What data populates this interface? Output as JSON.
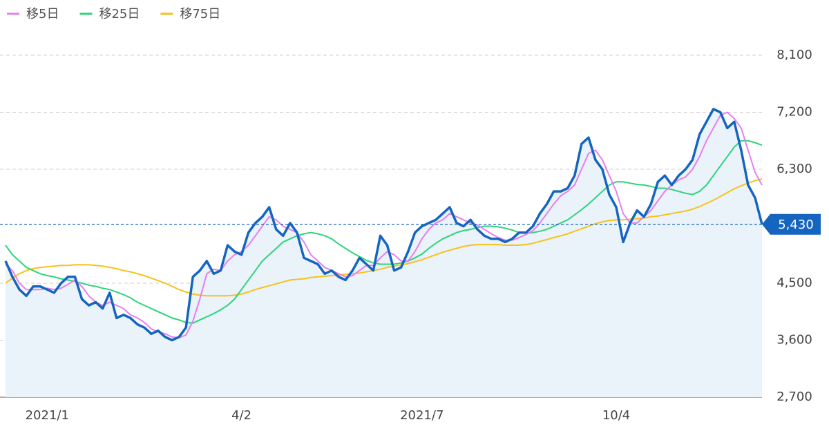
{
  "chart_data": {
    "type": "line",
    "categories": [
      null,
      null,
      null,
      null,
      null,
      null,
      "2021/1",
      null,
      null,
      null,
      null,
      null,
      null,
      null,
      null,
      null,
      null,
      null,
      null,
      null,
      null,
      null,
      null,
      null,
      null,
      null,
      null,
      null,
      null,
      null,
      null,
      null,
      null,
      null,
      "4/2",
      null,
      null,
      null,
      null,
      null,
      null,
      null,
      null,
      null,
      null,
      null,
      null,
      null,
      null,
      null,
      null,
      null,
      null,
      null,
      null,
      null,
      null,
      null,
      null,
      null,
      "2021/7",
      null,
      null,
      null,
      null,
      null,
      null,
      null,
      null,
      null,
      null,
      null,
      null,
      null,
      null,
      null,
      null,
      null,
      null,
      null,
      null,
      null,
      null,
      null,
      null,
      null,
      null,
      null,
      "10/4",
      null,
      null,
      null,
      null,
      null,
      null,
      null,
      null,
      null,
      null,
      null,
      null,
      null,
      null,
      null,
      null,
      null,
      null,
      null,
      null,
      null
    ],
    "values": [
      4850,
      4600,
      4400,
      4300,
      4450,
      4450,
      4400,
      4350,
      4500,
      4600,
      4600,
      4250,
      4150,
      4200,
      4100,
      4350,
      3950,
      4000,
      3950,
      3850,
      3800,
      3700,
      3750,
      3650,
      3600,
      3650,
      3800,
      4600,
      4700,
      4850,
      4650,
      4700,
      5100,
      5000,
      4950,
      5300,
      5450,
      5550,
      5700,
      5350,
      5250,
      5450,
      5300,
      4900,
      4850,
      4800,
      4650,
      4700,
      4600,
      4550,
      4700,
      4900,
      4800,
      4700,
      5250,
      5100,
      4700,
      4750,
      5000,
      5300,
      5400,
      5450,
      5500,
      5600,
      5700,
      5450,
      5400,
      5500,
      5350,
      5250,
      5200,
      5200,
      5150,
      5200,
      5300,
      5300,
      5400,
      5600,
      5750,
      5950,
      5950,
      6000,
      6200,
      6700,
      6800,
      6450,
      6300,
      5900,
      5700,
      5150,
      5450,
      5650,
      5550,
      5750,
      6100,
      6200,
      6050,
      6200,
      6300,
      6450,
      6850,
      7050,
      7250,
      7200,
      6950,
      7050,
      6600,
      6050,
      5850,
      5430
    ],
    "color": "#1565c0",
    "series": [
      {
        "name": "移5日",
        "color": "#e67ef0",
        "values": [
          4800,
          4700,
          4500,
          4400,
          4400,
          4400,
          4420,
          4400,
          4420,
          4480,
          4550,
          4450,
          4300,
          4200,
          4150,
          4200,
          4150,
          4100,
          4000,
          3950,
          3880,
          3780,
          3730,
          3700,
          3650,
          3640,
          3680,
          3900,
          4250,
          4650,
          4720,
          4700,
          4850,
          4950,
          5000,
          5100,
          5250,
          5400,
          5550,
          5500,
          5400,
          5350,
          5300,
          5150,
          4950,
          4850,
          4750,
          4700,
          4650,
          4600,
          4620,
          4700,
          4780,
          4780,
          4900,
          5000,
          4950,
          4850,
          4850,
          5000,
          5200,
          5350,
          5450,
          5500,
          5600,
          5550,
          5500,
          5450,
          5420,
          5350,
          5280,
          5220,
          5180,
          5180,
          5220,
          5270,
          5330,
          5450,
          5600,
          5750,
          5880,
          5950,
          6050,
          6300,
          6550,
          6600,
          6450,
          6200,
          5950,
          5600,
          5450,
          5450,
          5550,
          5650,
          5800,
          5950,
          6050,
          6130,
          6180,
          6300,
          6500,
          6750,
          6950,
          7150,
          7200,
          7100,
          6950,
          6600,
          6250,
          6050
        ]
      },
      {
        "name": "移25日",
        "color": "#2dd47a",
        "values": [
          5100,
          4950,
          4850,
          4750,
          4700,
          4650,
          4620,
          4600,
          4570,
          4550,
          4530,
          4500,
          4470,
          4450,
          4420,
          4400,
          4360,
          4320,
          4270,
          4200,
          4150,
          4100,
          4050,
          4000,
          3950,
          3920,
          3880,
          3870,
          3920,
          3970,
          4020,
          4080,
          4150,
          4250,
          4400,
          4550,
          4700,
          4850,
          4950,
          5050,
          5150,
          5200,
          5250,
          5280,
          5300,
          5280,
          5250,
          5200,
          5120,
          5050,
          4980,
          4920,
          4860,
          4820,
          4800,
          4800,
          4800,
          4820,
          4850,
          4900,
          4960,
          5050,
          5130,
          5200,
          5250,
          5300,
          5330,
          5350,
          5380,
          5400,
          5400,
          5390,
          5370,
          5340,
          5300,
          5290,
          5300,
          5320,
          5350,
          5400,
          5450,
          5500,
          5580,
          5660,
          5750,
          5850,
          5950,
          6050,
          6100,
          6100,
          6080,
          6060,
          6050,
          6030,
          6000,
          6000,
          5980,
          5950,
          5920,
          5900,
          5950,
          6050,
          6200,
          6350,
          6500,
          6650,
          6750,
          6750,
          6720,
          6680
        ]
      },
      {
        "name": "移75日",
        "color": "#f7c21a",
        "values": [
          4500,
          4580,
          4650,
          4700,
          4730,
          4750,
          4760,
          4770,
          4780,
          4780,
          4790,
          4790,
          4790,
          4780,
          4770,
          4750,
          4730,
          4700,
          4680,
          4650,
          4620,
          4580,
          4540,
          4500,
          4450,
          4400,
          4360,
          4330,
          4310,
          4300,
          4300,
          4300,
          4300,
          4310,
          4330,
          4360,
          4400,
          4430,
          4460,
          4490,
          4520,
          4550,
          4560,
          4570,
          4590,
          4600,
          4610,
          4620,
          4630,
          4640,
          4650,
          4660,
          4680,
          4700,
          4720,
          4750,
          4770,
          4790,
          4810,
          4840,
          4870,
          4910,
          4950,
          4990,
          5020,
          5050,
          5080,
          5100,
          5110,
          5110,
          5110,
          5110,
          5100,
          5100,
          5100,
          5110,
          5130,
          5160,
          5190,
          5220,
          5250,
          5280,
          5320,
          5360,
          5400,
          5440,
          5470,
          5490,
          5500,
          5500,
          5510,
          5520,
          5530,
          5550,
          5560,
          5580,
          5600,
          5620,
          5640,
          5670,
          5710,
          5760,
          5810,
          5870,
          5930,
          5990,
          6040,
          6080,
          6120,
          6150
        ]
      }
    ],
    "ylim": [
      2700,
      8600
    ],
    "yticks": [
      {
        "value": 2700,
        "label": "2,700"
      },
      {
        "value": 3600,
        "label": "3,600"
      },
      {
        "value": 4500,
        "label": "4,500"
      },
      {
        "value": 6300,
        "label": "6,300"
      },
      {
        "value": 7200,
        "label": "7,200"
      },
      {
        "value": 8100,
        "label": "8,100"
      }
    ],
    "last_price": {
      "value": 5430,
      "label": "5,430"
    },
    "grid": true
  }
}
